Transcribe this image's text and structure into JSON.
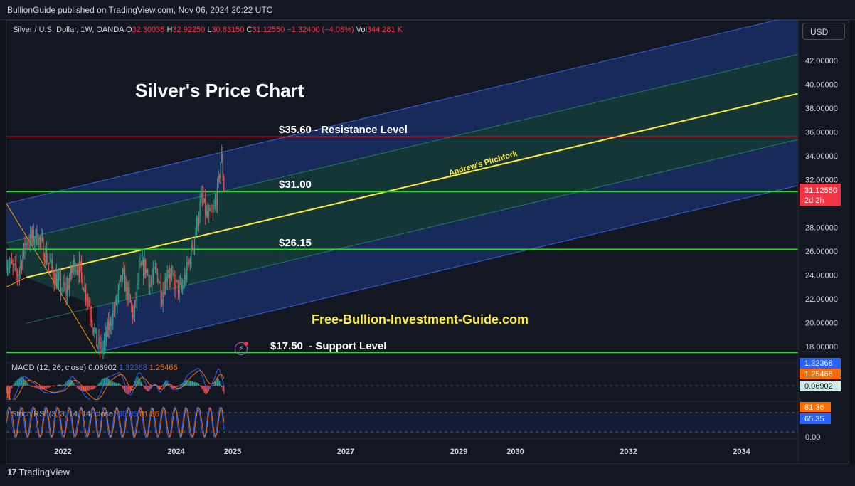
{
  "header": {
    "published_by": "BullionGuide published on TradingView.com, Nov 06, 2024 20:22 UTC"
  },
  "symbol_legend": {
    "name": "Silver / U.S. Dollar, 1W, OANDA",
    "o_label": "O",
    "o_value": "32.30035",
    "h_label": "H",
    "h_value": "32.92250",
    "l_label": "L",
    "l_value": "30.83150",
    "c_label": "C",
    "c_value": "31.12550",
    "change": "−1.32400 (−4.08%)",
    "vol_label": "Vol",
    "vol_value": "344.281 K"
  },
  "currency_button": "USD",
  "annotations": {
    "title": "Silver's Price Chart",
    "resistance": "$35.60 - Resistance Level",
    "level_31": "$31.00",
    "level_26": "$26.15",
    "support": "$17.50  - Support Level",
    "website": "Free-Bullion-Investment-Guide.com",
    "pitchfork": "Andrew's Pitchfork"
  },
  "price_axis": {
    "ticks": [
      "42.00000",
      "40.00000",
      "38.00000",
      "36.00000",
      "34.00000",
      "32.00000",
      "28.00000",
      "26.00000",
      "24.00000",
      "22.00000",
      "20.00000",
      "18.00000"
    ],
    "last_price": "31.12550",
    "last_countdown": "2d 2h"
  },
  "macd": {
    "label": "MACD (12, 26, close)",
    "histogram": "0.06902",
    "macd": "1.32368",
    "signal": "1.25466"
  },
  "stoch_rsi": {
    "label": "Stoch RSI (3, 3, 14, 14, close)",
    "k": "65.35",
    "d": "81.36",
    "axis_label": "0.00"
  },
  "time_axis": {
    "labels": [
      "2022",
      "2024",
      "2025",
      "2027",
      "2029",
      "2030",
      "2032",
      "2034"
    ]
  },
  "footer": {
    "brand": "TradingView"
  },
  "colors": {
    "background": "#131722",
    "resistance": "#f23645",
    "support": "#22dd22",
    "median": "#ffeb3b",
    "channel_blue": "#2962ff",
    "channel_green": "#1b8a6b",
    "macd_line": "#2962ff",
    "signal_line": "#ff6d00",
    "annotation_yellow": "#ffeb3b"
  },
  "chart_data": {
    "type": "candlestick",
    "title": "Silver's Price Chart",
    "symbol": "Silver / U.S. Dollar, 1W, OANDA",
    "ylim": [
      16.5,
      43.5
    ],
    "xlim": [
      2021.0,
      2034.6
    ],
    "horizontal_levels": [
      {
        "name": "$35.60 - Resistance Level",
        "price": 35.6,
        "color": "#f23645"
      },
      {
        "name": "$31.00",
        "price": 31.0,
        "color": "#22dd22"
      },
      {
        "name": "$26.15",
        "price": 26.15,
        "color": "#22dd22"
      },
      {
        "name": "$17.50  - Support Level",
        "price": 17.5,
        "color": "#22dd22"
      }
    ],
    "pitchfork": {
      "name": "Andrew's Pitchfork",
      "median_start": [
        2021.35,
        23.8
      ],
      "median_end": [
        2034.6,
        39.2
      ],
      "upper_start": [
        2021.0,
        30.0
      ],
      "lower_start": [
        2022.6,
        17.5
      ],
      "slope_per_year": 1.13
    },
    "price_path": [
      [
        2021.0,
        25.2
      ],
      [
        2021.2,
        24.0
      ],
      [
        2021.35,
        26.8
      ],
      [
        2021.55,
        27.3
      ],
      [
        2021.75,
        25.0
      ],
      [
        2021.9,
        23.4
      ],
      [
        2022.05,
        22.5
      ],
      [
        2022.2,
        25.1
      ],
      [
        2022.3,
        24.4
      ],
      [
        2022.45,
        21.8
      ],
      [
        2022.6,
        18.2
      ],
      [
        2022.7,
        17.8
      ],
      [
        2022.8,
        19.5
      ],
      [
        2022.95,
        21.8
      ],
      [
        2023.05,
        24.0
      ],
      [
        2023.15,
        22.3
      ],
      [
        2023.25,
        20.5
      ],
      [
        2023.35,
        24.3
      ],
      [
        2023.45,
        24.8
      ],
      [
        2023.55,
        23.2
      ],
      [
        2023.65,
        24.5
      ],
      [
        2023.75,
        22.3
      ],
      [
        2023.85,
        24.5
      ],
      [
        2023.95,
        23.3
      ],
      [
        2024.1,
        22.7
      ],
      [
        2024.2,
        24.5
      ],
      [
        2024.3,
        26.6
      ],
      [
        2024.38,
        28.6
      ],
      [
        2024.45,
        30.5
      ],
      [
        2024.55,
        28.8
      ],
      [
        2024.65,
        29.0
      ],
      [
        2024.75,
        31.6
      ],
      [
        2024.8,
        34.2
      ],
      [
        2024.85,
        31.1
      ]
    ],
    "macd": {
      "macd": 1.32368,
      "signal": 1.25466,
      "histogram": 0.06902
    },
    "stoch_rsi": {
      "k": 65.35,
      "d": 81.36
    }
  }
}
